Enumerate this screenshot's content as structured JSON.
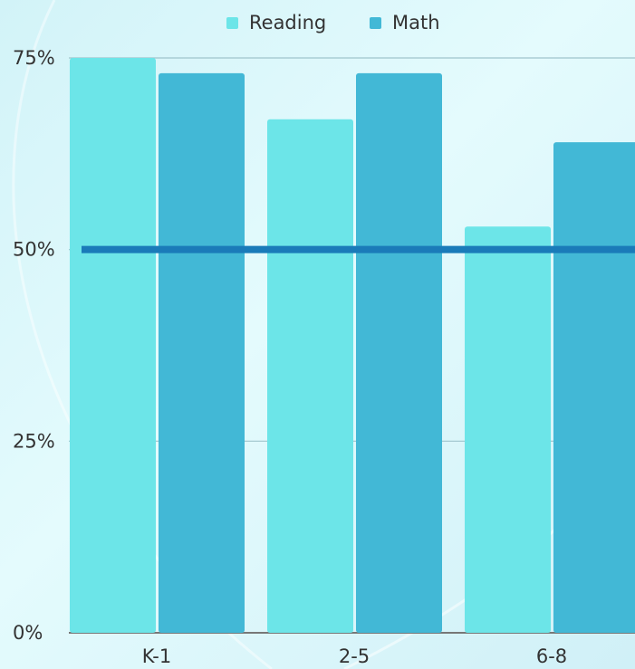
{
  "chart_data": {
    "type": "bar",
    "categories": [
      "K-1",
      "2-5",
      "6-8"
    ],
    "series": [
      {
        "name": "Reading",
        "color": "#6ce5e8",
        "values": [
          75,
          67,
          53
        ]
      },
      {
        "name": "Math",
        "color": "#42b8d6",
        "values": [
          73,
          73,
          64
        ]
      }
    ],
    "reference_line": 50,
    "reference_color": "#1a7bb9",
    "ylim": [
      0,
      75
    ],
    "yticks": [
      {
        "value": 0,
        "label": "0%"
      },
      {
        "value": 25,
        "label": "25%"
      },
      {
        "value": 50,
        "label": "50%"
      },
      {
        "value": 75,
        "label": "75%"
      }
    ],
    "grid": true,
    "legend": "top"
  }
}
